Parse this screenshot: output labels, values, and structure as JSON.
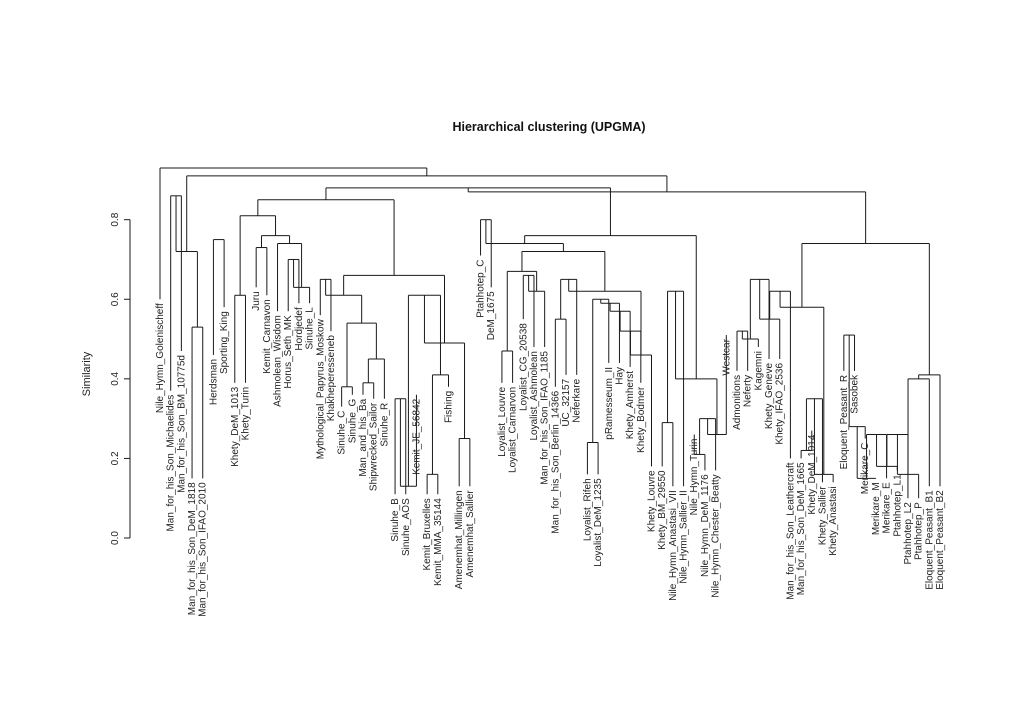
{
  "chart_data": {
    "type": "dendrogram",
    "title": "Hierarchical clustering (UPGMA)",
    "ylabel": "Similarity",
    "ylim": [
      0,
      0.95
    ],
    "yticks": [
      "0.0",
      "0.2",
      "0.4",
      "0.6",
      "0.8"
    ],
    "ytick_values": [
      0,
      0.2,
      0.4,
      0.6,
      0.8
    ],
    "leaves": [
      {
        "label": "Nile_Hymn_Golenischeff",
        "h": 0.6
      },
      {
        "label": "Man_for_his_Son_Michaelides",
        "h": 0.37
      },
      {
        "label": "Man_for_his_Son_BM_10775d",
        "h": 0.47
      },
      {
        "label": "Man_for_his_Son_DeM_1818",
        "h": 0.15
      },
      {
        "label": "Man_for_his_Son_IFAO_2010",
        "h": 0.15
      },
      {
        "label": "Herdsman",
        "h": 0.46
      },
      {
        "label": "Sporting_King",
        "h": 0.58
      },
      {
        "label": "Khety_DeM_1013",
        "h": 0.39
      },
      {
        "label": "Khety_Turin",
        "h": 0.39
      },
      {
        "label": "Juru",
        "h": 0.63
      },
      {
        "label": "Kemit_Carnavon",
        "h": 0.61
      },
      {
        "label": "Ashmolean_Wisdom",
        "h": 0.57
      },
      {
        "label": "Horus_Seth_MK",
        "h": 0.57
      },
      {
        "label": "Hordjedef",
        "h": 0.59
      },
      {
        "label": "Sinuhe_L",
        "h": 0.59
      },
      {
        "label": "Mythological_Papyrus_Moskow",
        "h": 0.56
      },
      {
        "label": "Khakheperesseneb",
        "h": 0.52
      },
      {
        "label": "Sinuhe_C",
        "h": 0.33
      },
      {
        "label": "Sinuhe_G",
        "h": 0.36
      },
      {
        "label": "Man_and_his_Ba",
        "h": 0.36
      },
      {
        "label": "Shipwrecked_Sailor",
        "h": 0.35
      },
      {
        "label": "Sinuhe_R",
        "h": 0.35
      },
      {
        "label": "Sinuhe_B",
        "h": 0.11
      },
      {
        "label": "Sinuhe_AOS",
        "h": 0.11
      },
      {
        "label": "Kemit_JE_56842",
        "h": 0.36
      },
      {
        "label": "Kemit_Bruxelles",
        "h": 0.11
      },
      {
        "label": "Kemit_MMA_35144",
        "h": 0.11
      },
      {
        "label": "Fishing",
        "h": 0.38
      },
      {
        "label": "Amenemhat_Millingen",
        "h": 0.13
      },
      {
        "label": "Amenemhat_Sallier",
        "h": 0.13
      },
      {
        "label": "Ptahhotep_C",
        "h": 0.71
      },
      {
        "label": "DeM_1675",
        "h": 0.63
      },
      {
        "label": "Loyalist_Louvre",
        "h": 0.39
      },
      {
        "label": "Loyalist_Carnarvon",
        "h": 0.39
      },
      {
        "label": "Loyalist_CG_20538",
        "h": 0.55
      },
      {
        "label": "Loyalist_Ashmolean",
        "h": 0.48
      },
      {
        "label": "Man_for_his_Son_IFAO_1185",
        "h": 0.48
      },
      {
        "label": "Man_for_his_Son_Berlin_14366",
        "h": 0.38
      },
      {
        "label": "UC_32157",
        "h": 0.41
      },
      {
        "label": "Neferkare",
        "h": 0.41
      },
      {
        "label": "Loyalist_Rifeh",
        "h": 0.16
      },
      {
        "label": "Loyalist_DeM_1235",
        "h": 0.16
      },
      {
        "label": "pRamesseum_II",
        "h": 0.44
      },
      {
        "label": "Hay",
        "h": 0.44
      },
      {
        "label": "Khety_Amherst",
        "h": 0.43
      },
      {
        "label": "Khety_Bodmer",
        "h": 0.39
      },
      {
        "label": "Khety_Louvre",
        "h": 0.18
      },
      {
        "label": "Khety_BM_29550",
        "h": 0.18
      },
      {
        "label": "Nile_Hymn_Anastasi_VII",
        "h": 0.13
      },
      {
        "label": "Nile_Hymn_Sallier_II",
        "h": 0.13
      },
      {
        "label": "Nile_Hymn_Turin",
        "h": 0.26
      },
      {
        "label": "Nile_Hymn_DeM_1176",
        "h": 0.17
      },
      {
        "label": "Nile_Hymn_Chester_Beatty",
        "h": 0.17
      },
      {
        "label": "Westcar",
        "h": 0.51
      },
      {
        "label": "Admonitions",
        "h": 0.42
      },
      {
        "label": "Neferty",
        "h": 0.42
      },
      {
        "label": "Kagemni",
        "h": 0.48
      },
      {
        "label": "Khety_Geneve",
        "h": 0.45
      },
      {
        "label": "Khety_IFAO_2536",
        "h": 0.45
      },
      {
        "label": "Man_for_his_Son_Leathercraft",
        "h": 0.2
      },
      {
        "label": "Man_for_his_Son_DeM_1665",
        "h": 0.2
      },
      {
        "label": "Khety_DeM_1014",
        "h": 0.27
      },
      {
        "label": "Khety_Sallier",
        "h": 0.14
      },
      {
        "label": "Khety_Anastasi",
        "h": 0.14
      },
      {
        "label": "Eloquent_Peasant_R",
        "h": 0.42
      },
      {
        "label": "Sasobek",
        "h": 0.42
      },
      {
        "label": "Merikare_C",
        "h": 0.25
      },
      {
        "label": "Merikare_M",
        "h": 0.15
      },
      {
        "label": "Merikare_E",
        "h": 0.15
      },
      {
        "label": "Ptahhotep_L1",
        "h": 0.17
      },
      {
        "label": "Ptahhotep_L2",
        "h": 0.1
      },
      {
        "label": "Ptahhotep_P",
        "h": 0.1
      },
      {
        "label": "Eloquent_Peasant_B1",
        "h": 0.13
      },
      {
        "label": "Eloquent_Peasant_B2",
        "h": 0.13
      }
    ],
    "merges": [
      [
        1,
        2,
        0.86
      ],
      [
        3,
        4,
        0.53
      ],
      [
        2,
        4,
        0.72
      ],
      [
        5,
        6,
        0.75
      ],
      [
        7,
        8,
        0.61
      ],
      [
        9,
        10,
        0.73
      ],
      [
        12,
        13,
        0.7
      ],
      [
        13,
        14,
        0.63
      ],
      [
        11,
        14,
        0.74
      ],
      [
        10,
        14,
        0.76
      ],
      [
        8,
        14,
        0.81
      ],
      [
        15,
        16,
        0.65
      ],
      [
        17,
        18,
        0.38
      ],
      [
        19,
        20,
        0.39
      ],
      [
        20,
        21,
        0.45
      ],
      [
        18,
        21,
        0.54
      ],
      [
        16,
        21,
        0.61
      ],
      [
        22,
        23,
        0.35
      ],
      [
        23,
        24,
        0.13
      ],
      [
        22,
        24,
        0.41
      ],
      [
        25,
        26,
        0.16
      ],
      [
        26,
        27,
        0.41
      ],
      [
        22,
        27,
        0.61
      ],
      [
        28,
        29,
        0.25
      ],
      [
        27,
        29,
        0.49
      ],
      [
        16,
        29,
        0.66
      ],
      [
        14,
        29,
        0.85
      ],
      [
        30,
        31,
        0.8
      ],
      [
        32,
        33,
        0.47
      ],
      [
        34,
        35,
        0.66
      ],
      [
        35,
        36,
        0.62
      ],
      [
        33,
        36,
        0.67
      ],
      [
        37,
        38,
        0.55
      ],
      [
        38,
        39,
        0.65
      ],
      [
        40,
        41,
        0.24
      ],
      [
        41,
        42,
        0.6
      ],
      [
        42,
        43,
        0.59
      ],
      [
        43,
        44,
        0.57
      ],
      [
        44,
        45,
        0.52
      ],
      [
        45,
        46,
        0.46
      ],
      [
        39,
        46,
        0.62
      ],
      [
        36,
        46,
        0.72
      ],
      [
        31,
        46,
        0.74
      ],
      [
        47,
        48,
        0.29
      ],
      [
        48,
        49,
        0.62
      ],
      [
        50,
        51,
        0.21
      ],
      [
        51,
        52,
        0.3
      ],
      [
        52,
        53,
        0.26
      ],
      [
        49,
        53,
        0.4
      ],
      [
        46,
        53,
        0.76
      ],
      [
        29,
        53,
        0.88
      ],
      [
        54,
        55,
        0.52
      ],
      [
        55,
        56,
        0.5
      ],
      [
        56,
        57,
        0.65
      ],
      [
        57,
        58,
        0.55
      ],
      [
        58,
        59,
        0.62
      ],
      [
        60,
        61,
        0.22
      ],
      [
        61,
        62,
        0.35
      ],
      [
        62,
        63,
        0.16
      ],
      [
        61,
        63,
        0.46
      ],
      [
        59,
        63,
        0.58
      ],
      [
        64,
        65,
        0.51
      ],
      [
        65,
        66,
        0.28
      ],
      [
        66,
        67,
        0.15
      ],
      [
        67,
        68,
        0.26
      ],
      [
        68,
        69,
        0.18
      ],
      [
        69,
        70,
        0.26
      ],
      [
        70,
        71,
        0.16
      ],
      [
        71,
        72,
        0.4
      ],
      [
        72,
        73,
        0.41
      ],
      [
        63,
        73,
        0.74
      ],
      [
        53,
        73,
        0.87
      ],
      [
        1,
        73,
        0.91
      ],
      [
        0,
        73,
        0.93
      ]
    ]
  }
}
